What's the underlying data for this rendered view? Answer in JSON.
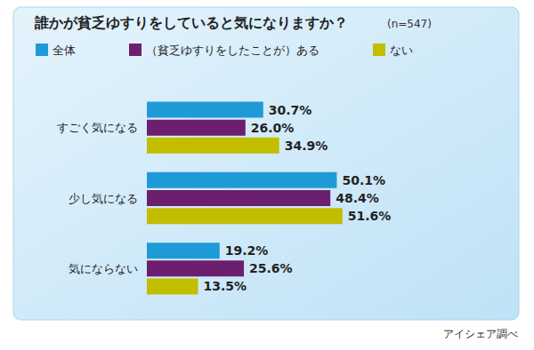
{
  "chart_data": {
    "type": "bar",
    "orientation": "horizontal",
    "title": "誰かが貧乏ゆすりをしていると気になりますか？",
    "subtitle": "(n=547)",
    "annotation": "アイシェア調べ",
    "categories": [
      "すごく気になる",
      "少し気になる",
      "気にならない"
    ],
    "series": [
      {
        "name": "全体",
        "color": "#1e9bd7",
        "values": [
          30.7,
          50.1,
          19.2
        ],
        "value_labels": [
          "30.7%",
          "50.1%",
          "19.2%"
        ]
      },
      {
        "name": "（貧乏ゆすりをしたことが）ある",
        "color": "#6b1f6e",
        "values": [
          26.0,
          48.4,
          25.6
        ],
        "value_labels": [
          "26.0%",
          "48.4%",
          "25.6%"
        ]
      },
      {
        "name": "ない",
        "color": "#c3bd00",
        "values": [
          34.9,
          51.6,
          13.5
        ],
        "value_labels": [
          "34.9%",
          "51.6%",
          "13.5%"
        ]
      }
    ],
    "xlim": [
      0,
      100
    ],
    "data_labels": true,
    "tick_labels": "y",
    "legend": "top-left",
    "grid": false
  }
}
